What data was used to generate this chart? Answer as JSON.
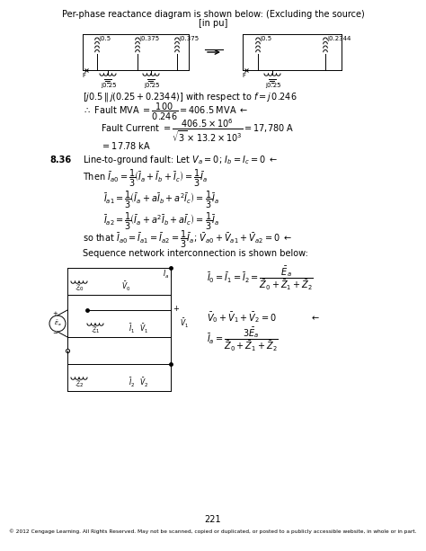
{
  "title1": "Per-phase reactance diagram is shown below: (Excluding the source)",
  "title2": "[in pu]",
  "background": "#ffffff",
  "page_number": "221",
  "footer": "© 2012 Cengage Learning. All Rights Reserved. May not be scanned, copied or duplicated, or posted to a publicly accessible website, in whole or in part.",
  "fs_main": 7.0,
  "fs_small": 5.5,
  "fs_circuit": 5.0
}
